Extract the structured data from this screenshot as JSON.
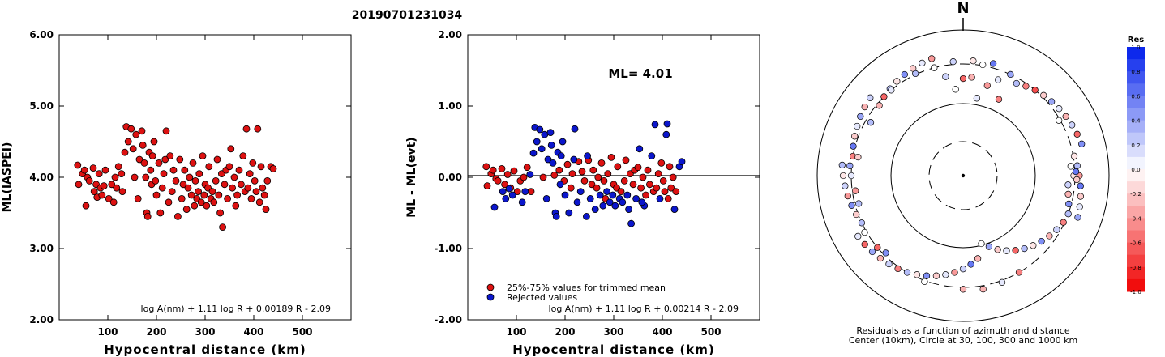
{
  "title": "20190701231034",
  "chart_data": [
    {
      "type": "scatter",
      "name": "ml-vs-distance",
      "ylabel": "ML(IASPEI)",
      "xlabel": "Hypocentral distance (km)",
      "xlim": [
        0,
        600
      ],
      "ylim": [
        2.0,
        6.0
      ],
      "xticks": [
        100,
        200,
        300,
        400,
        500
      ],
      "yticks": [
        "2.00",
        "3.00",
        "4.00",
        "5.00",
        "6.00"
      ],
      "formula": "log A(nm) + 1.11 log R + 0.00189 R - 2.09",
      "point_color": "#dd1111",
      "points": [
        [
          38,
          4.17
        ],
        [
          40,
          3.9
        ],
        [
          48,
          4.05
        ],
        [
          52,
          4.1
        ],
        [
          55,
          3.6
        ],
        [
          58,
          4.0
        ],
        [
          62,
          3.95
        ],
        [
          70,
          4.13
        ],
        [
          72,
          3.8
        ],
        [
          76,
          3.9
        ],
        [
          78,
          3.72
        ],
        [
          82,
          4.05
        ],
        [
          85,
          3.85
        ],
        [
          88,
          3.75
        ],
        [
          92,
          3.88
        ],
        [
          95,
          4.1
        ],
        [
          102,
          3.7
        ],
        [
          108,
          3.9
        ],
        [
          112,
          3.65
        ],
        [
          115,
          4.0
        ],
        [
          118,
          3.85
        ],
        [
          122,
          4.15
        ],
        [
          128,
          4.05
        ],
        [
          130,
          3.8
        ],
        [
          135,
          4.35
        ],
        [
          138,
          4.71
        ],
        [
          142,
          4.5
        ],
        [
          148,
          4.68
        ],
        [
          152,
          4.4
        ],
        [
          155,
          4.0
        ],
        [
          158,
          4.6
        ],
        [
          162,
          3.7
        ],
        [
          165,
          4.25
        ],
        [
          170,
          4.65
        ],
        [
          172,
          4.45
        ],
        [
          175,
          4.2
        ],
        [
          178,
          4.0
        ],
        [
          180,
          3.5
        ],
        [
          182,
          3.45
        ],
        [
          185,
          4.35
        ],
        [
          188,
          4.1
        ],
        [
          190,
          3.9
        ],
        [
          192,
          4.3
        ],
        [
          195,
          4.5
        ],
        [
          198,
          3.95
        ],
        [
          200,
          3.75
        ],
        [
          205,
          4.2
        ],
        [
          208,
          3.5
        ],
        [
          212,
          3.85
        ],
        [
          215,
          4.05
        ],
        [
          218,
          4.25
        ],
        [
          220,
          4.65
        ],
        [
          225,
          3.65
        ],
        [
          228,
          4.3
        ],
        [
          232,
          3.8
        ],
        [
          235,
          4.1
        ],
        [
          240,
          3.95
        ],
        [
          244,
          3.45
        ],
        [
          248,
          4.25
        ],
        [
          252,
          3.7
        ],
        [
          255,
          3.9
        ],
        [
          258,
          4.1
        ],
        [
          262,
          3.55
        ],
        [
          265,
          3.85
        ],
        [
          268,
          4.0
        ],
        [
          272,
          3.75
        ],
        [
          275,
          4.2
        ],
        [
          278,
          3.6
        ],
        [
          280,
          3.95
        ],
        [
          283,
          3.7
        ],
        [
          286,
          3.8
        ],
        [
          288,
          4.05
        ],
        [
          292,
          3.65
        ],
        [
          295,
          4.3
        ],
        [
          298,
          3.75
        ],
        [
          300,
          3.9
        ],
        [
          303,
          3.6
        ],
        [
          306,
          3.85
        ],
        [
          308,
          4.15
        ],
        [
          312,
          3.7
        ],
        [
          315,
          3.8
        ],
        [
          318,
          3.65
        ],
        [
          322,
          3.95
        ],
        [
          325,
          4.25
        ],
        [
          328,
          3.75
        ],
        [
          331,
          3.5
        ],
        [
          334,
          4.05
        ],
        [
          336,
          3.3
        ],
        [
          340,
          3.9
        ],
        [
          343,
          4.1
        ],
        [
          346,
          3.7
        ],
        [
          350,
          4.15
        ],
        [
          353,
          4.4
        ],
        [
          356,
          3.85
        ],
        [
          360,
          4.0
        ],
        [
          363,
          3.6
        ],
        [
          366,
          3.75
        ],
        [
          370,
          4.1
        ],
        [
          374,
          3.9
        ],
        [
          378,
          4.3
        ],
        [
          382,
          3.8
        ],
        [
          385,
          4.68
        ],
        [
          388,
          3.85
        ],
        [
          392,
          4.05
        ],
        [
          395,
          3.7
        ],
        [
          398,
          4.2
        ],
        [
          402,
          3.95
        ],
        [
          405,
          3.8
        ],
        [
          408,
          4.68
        ],
        [
          412,
          3.65
        ],
        [
          415,
          4.15
        ],
        [
          418,
          3.85
        ],
        [
          422,
          3.75
        ],
        [
          425,
          3.55
        ],
        [
          428,
          3.95
        ],
        [
          435,
          4.15
        ],
        [
          440,
          4.12
        ]
      ]
    },
    {
      "type": "scatter",
      "name": "residual-vs-distance",
      "ylabel": "ML - ML(evt)",
      "xlabel": "Hypocentral distance (km)",
      "xlim": [
        0,
        600
      ],
      "ylim": [
        -2.0,
        2.0
      ],
      "xticks": [
        100,
        200,
        300,
        400,
        500
      ],
      "yticks": [
        "-2.00",
        "-1.00",
        "0.00",
        "1.00",
        "2.00"
      ],
      "annotation": "ML= 4.01",
      "formula": "log A(nm) + 1.11 log R + 0.00214 R - 2.09",
      "legend": [
        {
          "label": "25%-75% values for trimmed mean",
          "color": "#dd1111"
        },
        {
          "label": "Rejected values",
          "color": "#0b16cc"
        }
      ],
      "accepted": [
        [
          38,
          0.15
        ],
        [
          40,
          -0.12
        ],
        [
          48,
          0.05
        ],
        [
          52,
          0.1
        ],
        [
          58,
          -0.02
        ],
        [
          62,
          -0.05
        ],
        [
          70,
          0.12
        ],
        [
          76,
          -0.1
        ],
        [
          82,
          0.04
        ],
        [
          88,
          -0.15
        ],
        [
          95,
          0.09
        ],
        [
          102,
          -0.2
        ],
        [
          108,
          -0.05
        ],
        [
          115,
          0.0
        ],
        [
          122,
          0.14
        ],
        [
          130,
          -0.2
        ],
        [
          155,
          0.0
        ],
        [
          178,
          0.03
        ],
        [
          188,
          0.1
        ],
        [
          198,
          -0.05
        ],
        [
          205,
          0.18
        ],
        [
          212,
          -0.15
        ],
        [
          215,
          0.05
        ],
        [
          228,
          0.22
        ],
        [
          235,
          0.08
        ],
        [
          240,
          -0.05
        ],
        [
          248,
          0.24
        ],
        [
          255,
          -0.1
        ],
        [
          258,
          0.1
        ],
        [
          265,
          -0.15
        ],
        [
          268,
          0.0
        ],
        [
          275,
          0.2
        ],
        [
          280,
          -0.05
        ],
        [
          283,
          -0.3
        ],
        [
          288,
          0.05
        ],
        [
          295,
          0.28
        ],
        [
          300,
          -0.1
        ],
        [
          306,
          -0.15
        ],
        [
          308,
          0.15
        ],
        [
          315,
          -0.2
        ],
        [
          322,
          -0.05
        ],
        [
          325,
          0.24
        ],
        [
          334,
          0.05
        ],
        [
          340,
          -0.1
        ],
        [
          343,
          0.1
        ],
        [
          350,
          0.14
        ],
        [
          356,
          -0.15
        ],
        [
          360,
          0.0
        ],
        [
          366,
          -0.25
        ],
        [
          370,
          0.1
        ],
        [
          374,
          -0.1
        ],
        [
          382,
          -0.2
        ],
        [
          388,
          -0.15
        ],
        [
          392,
          0.05
        ],
        [
          398,
          0.2
        ],
        [
          402,
          -0.05
        ],
        [
          405,
          -0.2
        ],
        [
          412,
          -0.3
        ],
        [
          415,
          0.15
        ],
        [
          418,
          -0.15
        ],
        [
          422,
          0.0
        ],
        [
          428,
          -0.2
        ]
      ],
      "rejected": [
        [
          55,
          -0.42
        ],
        [
          72,
          -0.2
        ],
        [
          78,
          -0.3
        ],
        [
          85,
          -0.16
        ],
        [
          92,
          -0.25
        ],
        [
          112,
          -0.35
        ],
        [
          118,
          -0.2
        ],
        [
          128,
          0.04
        ],
        [
          135,
          0.34
        ],
        [
          138,
          0.7
        ],
        [
          142,
          0.5
        ],
        [
          148,
          0.67
        ],
        [
          152,
          0.4
        ],
        [
          158,
          0.6
        ],
        [
          162,
          -0.3
        ],
        [
          165,
          0.25
        ],
        [
          170,
          0.63
        ],
        [
          172,
          0.45
        ],
        [
          175,
          0.2
        ],
        [
          180,
          -0.5
        ],
        [
          182,
          -0.55
        ],
        [
          185,
          0.35
        ],
        [
          190,
          -0.1
        ],
        [
          192,
          0.3
        ],
        [
          195,
          0.5
        ],
        [
          200,
          -0.25
        ],
        [
          208,
          -0.5
        ],
        [
          218,
          0.25
        ],
        [
          220,
          0.68
        ],
        [
          225,
          -0.35
        ],
        [
          232,
          -0.2
        ],
        [
          244,
          -0.55
        ],
        [
          252,
          -0.3
        ],
        [
          262,
          -0.45
        ],
        [
          272,
          -0.25
        ],
        [
          278,
          -0.4
        ],
        [
          286,
          -0.2
        ],
        [
          292,
          -0.35
        ],
        [
          298,
          -0.25
        ],
        [
          303,
          -0.4
        ],
        [
          312,
          -0.3
        ],
        [
          318,
          -0.35
        ],
        [
          328,
          -0.25
        ],
        [
          331,
          -0.45
        ],
        [
          336,
          -0.65
        ],
        [
          346,
          -0.3
        ],
        [
          353,
          0.4
        ],
        [
          363,
          -0.4
        ],
        [
          378,
          0.3
        ],
        [
          385,
          0.74
        ],
        [
          395,
          -0.3
        ],
        [
          408,
          0.6
        ],
        [
          425,
          -0.45
        ],
        [
          435,
          0.15
        ],
        [
          440,
          0.22
        ],
        [
          410,
          0.75
        ],
        [
          358,
          -0.35
        ],
        [
          246,
          0.3
        ]
      ]
    }
  ],
  "polar_plot": {
    "north_label": "N",
    "caption_line1": "Residuals as a function of azimuth and distance",
    "caption_line2": "Center (10km), Circle at 30, 100, 300 and 1000 km",
    "colorbar_title": "Res",
    "colorbar_ticks": [
      "1.0",
      "0.8",
      "0.6",
      "0.4",
      "0.2",
      "0.0",
      "-0.2",
      "-0.4",
      "-0.6",
      "-0.8",
      "-1.0"
    ],
    "stations": [
      [
        0,
        200,
        -0.6
      ],
      [
        5,
        210,
        -0.3
      ],
      [
        350,
        220,
        0.2
      ],
      [
        15,
        180,
        -0.4
      ],
      [
        20,
        230,
        0.1
      ],
      [
        30,
        260,
        0.3
      ],
      [
        35,
        280,
        -0.5
      ],
      [
        40,
        300,
        -0.7
      ],
      [
        45,
        320,
        -0.2
      ],
      [
        50,
        340,
        0.4
      ],
      [
        55,
        360,
        0.1
      ],
      [
        60,
        380,
        -0.3
      ],
      [
        65,
        400,
        0.2
      ],
      [
        70,
        420,
        -0.6
      ],
      [
        75,
        440,
        0.5
      ],
      [
        80,
        310,
        -0.1
      ],
      [
        85,
        330,
        0.3
      ],
      [
        90,
        350,
        -0.4
      ],
      [
        95,
        370,
        0.6
      ],
      [
        100,
        390,
        -0.2
      ],
      [
        105,
        410,
        0.1
      ],
      [
        110,
        430,
        0.4
      ],
      [
        115,
        290,
        -0.5
      ],
      [
        120,
        270,
        0.2
      ],
      [
        125,
        250,
        -0.3
      ],
      [
        130,
        230,
        0.5
      ],
      [
        135,
        210,
        -0.1
      ],
      [
        140,
        190,
        0.3
      ],
      [
        145,
        170,
        -0.6
      ],
      [
        150,
        150,
        0.1
      ],
      [
        155,
        130,
        -0.2
      ],
      [
        160,
        110,
        0.4
      ],
      [
        165,
        95,
        0.0
      ],
      [
        170,
        140,
        -0.3
      ],
      [
        175,
        160,
        0.6
      ],
      [
        180,
        180,
        0.2
      ],
      [
        185,
        200,
        -0.4
      ],
      [
        190,
        220,
        0.1
      ],
      [
        195,
        240,
        -0.2
      ],
      [
        200,
        260,
        0.5
      ],
      [
        205,
        280,
        -0.1
      ],
      [
        210,
        300,
        0.3
      ],
      [
        215,
        320,
        -0.5
      ],
      [
        220,
        340,
        0.2
      ],
      [
        225,
        360,
        -0.3
      ],
      [
        230,
        380,
        0.4
      ],
      [
        235,
        400,
        -0.6
      ],
      [
        240,
        420,
        0.1
      ],
      [
        245,
        300,
        0.3
      ],
      [
        250,
        320,
        -0.2
      ],
      [
        255,
        340,
        0.5
      ],
      [
        260,
        360,
        -0.4
      ],
      [
        265,
        380,
        0.2
      ],
      [
        270,
        400,
        -0.1
      ],
      [
        275,
        420,
        0.3
      ],
      [
        280,
        300,
        -0.5
      ],
      [
        285,
        320,
        0.6
      ],
      [
        290,
        340,
        -0.2
      ],
      [
        295,
        360,
        0.1
      ],
      [
        300,
        380,
        0.4
      ],
      [
        305,
        400,
        -0.3
      ],
      [
        310,
        420,
        0.2
      ],
      [
        315,
        300,
        -0.6
      ],
      [
        320,
        320,
        0.3
      ],
      [
        325,
        340,
        -0.1
      ],
      [
        330,
        360,
        0.5
      ],
      [
        335,
        380,
        -0.2
      ],
      [
        340,
        400,
        0.1
      ],
      [
        345,
        420,
        -0.4
      ],
      [
        355,
        150,
        0.0
      ],
      [
        10,
        120,
        0.1
      ],
      [
        25,
        140,
        -0.5
      ],
      [
        60,
        290,
        0.0
      ],
      [
        180,
        320,
        -0.3
      ],
      [
        200,
        310,
        0.0
      ],
      [
        95,
        250,
        0.2
      ],
      [
        100,
        260,
        -0.3
      ],
      [
        105,
        280,
        0.5
      ],
      [
        85,
        270,
        0.0
      ],
      [
        90,
        290,
        -0.1
      ],
      [
        110,
        300,
        0.3
      ],
      [
        88,
        310,
        0.6
      ],
      [
        92,
        320,
        -0.2
      ],
      [
        255,
        270,
        0.3
      ],
      [
        262,
        275,
        -0.4
      ],
      [
        270,
        300,
        0.1
      ],
      [
        275,
        320,
        0.4
      ],
      [
        280,
        260,
        -0.2
      ],
      [
        225,
        280,
        0.5
      ],
      [
        230,
        300,
        -0.6
      ],
      [
        240,
        320,
        0.0
      ],
      [
        300,
        260,
        0.3
      ],
      [
        310,
        280,
        -0.3
      ],
      [
        320,
        300,
        0.1
      ],
      [
        25,
        300,
        0.4
      ],
      [
        10,
        310,
        0.0
      ],
      [
        355,
        330,
        0.2
      ],
      [
        5,
        340,
        -0.1
      ],
      [
        15,
        350,
        0.6
      ],
      [
        345,
        300,
        0.0
      ],
      [
        335,
        310,
        0.3
      ],
      [
        150,
        300,
        -0.5
      ],
      [
        160,
        320,
        0.1
      ],
      [
        170,
        340,
        -0.3
      ]
    ]
  }
}
